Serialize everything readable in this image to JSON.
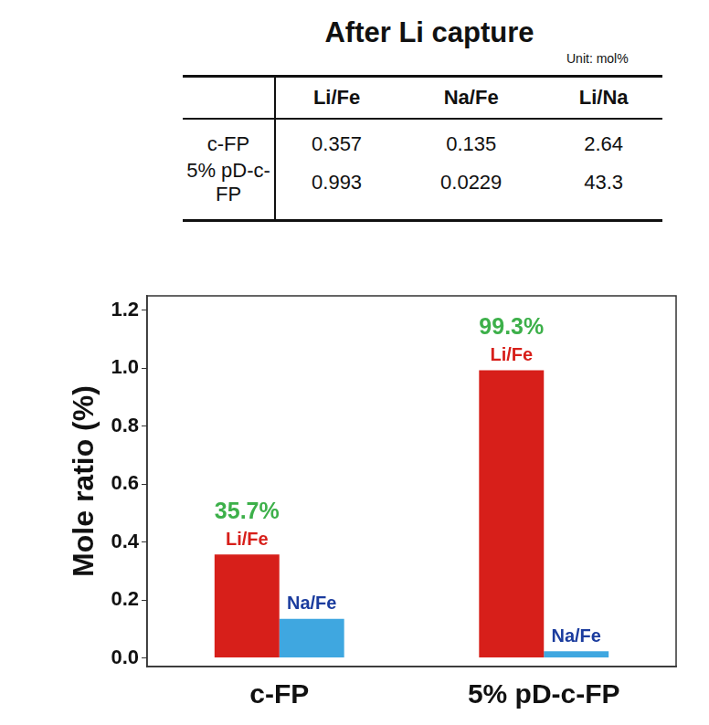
{
  "table": {
    "title": "After Li capture",
    "unit": "Unit: mol%",
    "header": [
      "Li/Fe",
      "Na/Fe",
      "Li/Na"
    ],
    "rows": [
      {
        "label": "c-FP",
        "values": [
          "0.357",
          "0.135",
          "2.64"
        ]
      },
      {
        "label": "5% pD-c-FP",
        "values": [
          "0.993",
          "0.0229",
          "43.3"
        ]
      }
    ]
  },
  "chart_data": {
    "type": "bar",
    "y_label": "Mole ratio (%)",
    "categories": [
      "c-FP",
      "5% pD-c-FP"
    ],
    "series": [
      {
        "name": "Li/Fe",
        "color": "#d71f1a",
        "values": [
          0.357,
          0.993
        ]
      },
      {
        "name": "Na/Fe",
        "color": "#3fa7e0",
        "values": [
          0.135,
          0.0229
        ]
      }
    ],
    "annotations": [
      {
        "text": "35.7%",
        "category": "c-FP",
        "series": "Li/Fe"
      },
      {
        "text": "99.3%",
        "category": "5% pD-c-FP",
        "series": "Li/Fe"
      }
    ],
    "ylim": [
      -0.03,
      1.25
    ],
    "yticks": [
      {
        "value": 0,
        "label": "0.0"
      },
      0.2,
      0.4,
      0.6,
      0.8,
      {
        "value": 1,
        "label": "1.0"
      },
      1.2
    ],
    "grid": false,
    "legend": "none"
  }
}
